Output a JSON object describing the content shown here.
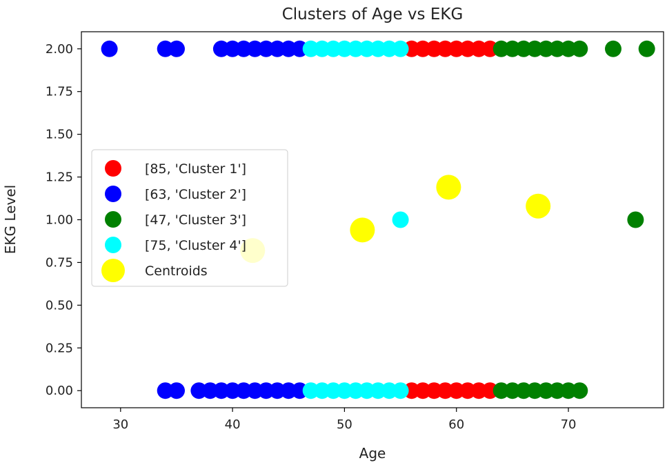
{
  "chart_data": {
    "type": "scatter",
    "title": "Clusters of Age vs EKG",
    "xlabel": "Age",
    "ylabel": "EKG Level",
    "xlim": [
      26.5,
      78.5
    ],
    "ylim": [
      -0.1,
      2.1
    ],
    "x_ticks": [
      30,
      40,
      50,
      60,
      70
    ],
    "y_ticks": [
      0.0,
      0.25,
      0.5,
      0.75,
      1.0,
      1.25,
      1.5,
      1.75,
      2.0
    ],
    "x_tick_labels": [
      "30",
      "40",
      "50",
      "60",
      "70"
    ],
    "y_tick_labels": [
      "0.00",
      "0.25",
      "0.50",
      "0.75",
      "1.00",
      "1.25",
      "1.50",
      "1.75",
      "2.00"
    ],
    "grid": false,
    "legend_position": "center-left",
    "series": [
      {
        "name": "[85, 'Cluster 1']",
        "color": "#ff0000",
        "points": [
          [
            56,
            2
          ],
          [
            57,
            2
          ],
          [
            58,
            2
          ],
          [
            59,
            2
          ],
          [
            60,
            2
          ],
          [
            61,
            2
          ],
          [
            62,
            2
          ],
          [
            63,
            2
          ],
          [
            56,
            0
          ],
          [
            57,
            0
          ],
          [
            58,
            0
          ],
          [
            59,
            0
          ],
          [
            60,
            0
          ],
          [
            61,
            0
          ],
          [
            62,
            0
          ],
          [
            63,
            0
          ]
        ]
      },
      {
        "name": "[63, 'Cluster 2']",
        "color": "#0000ff",
        "points": [
          [
            29,
            2
          ],
          [
            34,
            2
          ],
          [
            35,
            2
          ],
          [
            39,
            2
          ],
          [
            40,
            2
          ],
          [
            41,
            2
          ],
          [
            42,
            2
          ],
          [
            43,
            2
          ],
          [
            44,
            2
          ],
          [
            45,
            2
          ],
          [
            46,
            2
          ],
          [
            34,
            0
          ],
          [
            35,
            0
          ],
          [
            37,
            0
          ],
          [
            38,
            0
          ],
          [
            39,
            0
          ],
          [
            40,
            0
          ],
          [
            41,
            0
          ],
          [
            42,
            0
          ],
          [
            43,
            0
          ],
          [
            44,
            0
          ],
          [
            45,
            0
          ],
          [
            46,
            0
          ]
        ]
      },
      {
        "name": "[47, 'Cluster 3']",
        "color": "#008000",
        "points": [
          [
            64,
            2
          ],
          [
            65,
            2
          ],
          [
            66,
            2
          ],
          [
            67,
            2
          ],
          [
            68,
            2
          ],
          [
            69,
            2
          ],
          [
            70,
            2
          ],
          [
            71,
            2
          ],
          [
            74,
            2
          ],
          [
            77,
            2
          ],
          [
            76,
            1
          ],
          [
            64,
            0
          ],
          [
            65,
            0
          ],
          [
            66,
            0
          ],
          [
            67,
            0
          ],
          [
            68,
            0
          ],
          [
            69,
            0
          ],
          [
            70,
            0
          ],
          [
            71,
            0
          ]
        ]
      },
      {
        "name": "[75, 'Cluster 4']",
        "color": "#00ffff",
        "points": [
          [
            47,
            2
          ],
          [
            48,
            2
          ],
          [
            49,
            2
          ],
          [
            50,
            2
          ],
          [
            51,
            2
          ],
          [
            52,
            2
          ],
          [
            53,
            2
          ],
          [
            54,
            2
          ],
          [
            55,
            2
          ],
          [
            55,
            1
          ],
          [
            47,
            0
          ],
          [
            48,
            0
          ],
          [
            49,
            0
          ],
          [
            50,
            0
          ],
          [
            51,
            0
          ],
          [
            52,
            0
          ],
          [
            53,
            0
          ],
          [
            54,
            0
          ],
          [
            55,
            0
          ]
        ]
      },
      {
        "name": "Centroids",
        "color": "#ffff00",
        "points": [
          [
            41.8,
            0.82
          ],
          [
            51.6,
            0.94
          ],
          [
            59.3,
            1.19
          ],
          [
            67.3,
            1.08
          ]
        ]
      }
    ]
  }
}
